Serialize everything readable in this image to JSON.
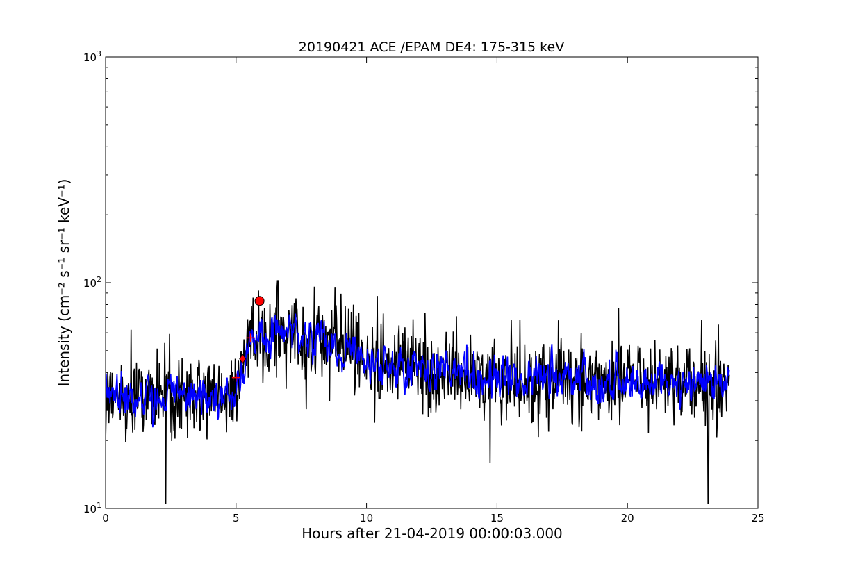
{
  "chart_data": {
    "type": "line",
    "title": "20190421 ACE /EPAM DE4: 175-315 keV",
    "xlabel": "Hours after 21-04-2019 00:00:03.000",
    "ylabel": "Intensity (cm⁻² s⁻¹ sr⁻¹ keV⁻¹)",
    "xlim": [
      0,
      25
    ],
    "ylim": [
      10,
      1000
    ],
    "yscale": "log",
    "grid": false,
    "x_tick_labels": [
      "0",
      "5",
      "10",
      "15",
      "20",
      "25"
    ],
    "y_tick_labels": [
      {
        "base": "10",
        "exp": "1"
      },
      {
        "base": "10",
        "exp": "2"
      },
      {
        "base": "10",
        "exp": "3"
      }
    ],
    "colors": {
      "raw_series": "#000000",
      "smoothed_series": "#0000ff",
      "markers": "#ff0000"
    },
    "series": [
      {
        "style": "raw",
        "x_start": 0.0,
        "x_end": 23.9,
        "baseline": [
          [
            0,
            32
          ],
          [
            5.0,
            32
          ],
          [
            5.5,
            55
          ],
          [
            6.5,
            58
          ],
          [
            8.5,
            55
          ],
          [
            10.5,
            44
          ],
          [
            13,
            40
          ],
          [
            16,
            37
          ],
          [
            23.9,
            36
          ]
        ],
        "peak_points": [
          [
            6.6,
            102
          ],
          [
            8.0,
            96
          ],
          [
            2.3,
            10.5
          ],
          [
            23.1,
            10.5
          ]
        ]
      },
      {
        "style": "smoothed",
        "x_start": 0.0,
        "x_end": 23.9,
        "baseline": [
          [
            0,
            32
          ],
          [
            5.0,
            32
          ],
          [
            5.6,
            55
          ],
          [
            6.5,
            60
          ],
          [
            8.5,
            55
          ],
          [
            10.5,
            44
          ],
          [
            13,
            40
          ],
          [
            16,
            37
          ],
          [
            23.9,
            36
          ]
        ]
      }
    ],
    "markers": [
      {
        "type": "circle",
        "x": 5.9,
        "y": 83
      },
      {
        "type": "diamond",
        "x": 5.25,
        "y": 46
      },
      {
        "type": "plus",
        "x": 5.55,
        "y": 57
      },
      {
        "type": "plus",
        "x": 5.0,
        "y": 38
      }
    ]
  }
}
